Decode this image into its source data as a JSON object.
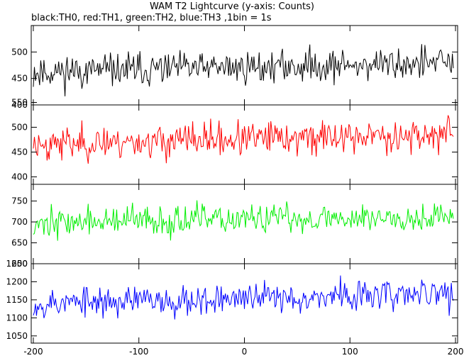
{
  "title": "WAM T2 Lightcurve (y-axis: Counts)",
  "subtitle": "black:TH0, red:TH1, green:TH2, blue:TH3 ,1bin = 1s",
  "chart_data": {
    "type": "line",
    "x_axis": {
      "range": [
        -202,
        202
      ],
      "ticks": [
        -200,
        -100,
        0,
        100,
        200
      ]
    },
    "panels": [
      {
        "name": "TH0",
        "color": "#000000",
        "ylim": [
          400,
          550
        ],
        "yticks": [
          400,
          450,
          500
        ],
        "base": 462,
        "slope": 0.09,
        "noise": 22,
        "seed": 11
      },
      {
        "name": "TH1",
        "color": "#ff0000",
        "ylim": [
          385,
          545
        ],
        "yticks": [
          400,
          450,
          500,
          550
        ],
        "base": 466,
        "slope": 0.1,
        "noise": 24,
        "seed": 23
      },
      {
        "name": "TH2",
        "color": "#00ee00",
        "ylim": [
          600,
          790
        ],
        "yticks": [
          600,
          650,
          700,
          750
        ],
        "base": 698,
        "slope": 0.08,
        "noise": 25,
        "seed": 37
      },
      {
        "name": "TH3",
        "color": "#0000ff",
        "ylim": [
          1030,
          1250
        ],
        "yticks": [
          1050,
          1100,
          1150,
          1200,
          1250
        ],
        "base": 1140,
        "slope": 0.14,
        "noise": 30,
        "seed": 53
      }
    ]
  }
}
